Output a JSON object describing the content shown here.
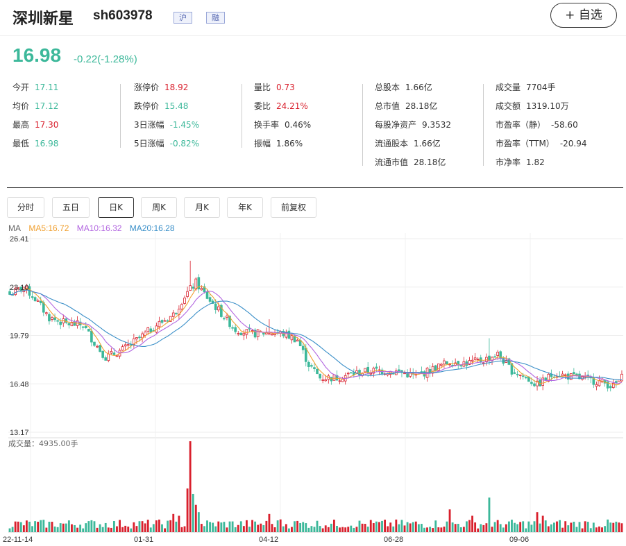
{
  "header": {
    "name": "深圳新星",
    "code": "sh603978",
    "tag_market": "沪",
    "tag_margin": "融",
    "add_watch": "+ 自选"
  },
  "quote": {
    "price": "16.98",
    "change": "-0.22(-1.28%)"
  },
  "stats": {
    "col1": [
      {
        "label": "今开",
        "value": "17.11",
        "dir": "down"
      },
      {
        "label": "均价",
        "value": "17.12",
        "dir": "down"
      },
      {
        "label": "最高",
        "value": "17.30",
        "dir": "up"
      },
      {
        "label": "最低",
        "value": "16.98",
        "dir": "down"
      }
    ],
    "col2": [
      {
        "label": "涨停价",
        "value": "18.92",
        "dir": "up"
      },
      {
        "label": "跌停价",
        "value": "15.48",
        "dir": "down"
      },
      {
        "label": "3日涨幅",
        "value": "-1.45%",
        "dir": "down"
      },
      {
        "label": "5日涨幅",
        "value": "-0.82%",
        "dir": "down"
      }
    ],
    "col3": [
      {
        "label": "量比",
        "value": "0.73",
        "dir": "up"
      },
      {
        "label": "委比",
        "value": "24.21%",
        "dir": "up"
      },
      {
        "label": "换手率",
        "value": "0.46%",
        "dir": "neutral"
      },
      {
        "label": "振幅",
        "value": "1.86%",
        "dir": "neutral"
      }
    ],
    "col4": [
      {
        "label": "总股本",
        "value": "1.66亿",
        "dir": "neutral"
      },
      {
        "label": "总市值",
        "value": "28.18亿",
        "dir": "neutral"
      },
      {
        "label": "每股净资产",
        "value": "9.3532",
        "dir": "neutral"
      },
      {
        "label": "流通股本",
        "value": "1.66亿",
        "dir": "neutral"
      },
      {
        "label": "流通市值",
        "value": "28.18亿",
        "dir": "neutral"
      }
    ],
    "col5": [
      {
        "label": "成交量",
        "value": "7704手",
        "dir": "neutral"
      },
      {
        "label": "成交额",
        "value": "1319.10万",
        "dir": "neutral"
      },
      {
        "label": "市盈率（静）",
        "value": "-58.60",
        "dir": "neutral"
      },
      {
        "label": "市盈率（TTM）",
        "value": "-20.94",
        "dir": "neutral"
      },
      {
        "label": "市净率",
        "value": "1.82",
        "dir": "neutral"
      }
    ]
  },
  "tabs": [
    "分时",
    "五日",
    "日K",
    "周K",
    "月K",
    "年K",
    "前复权"
  ],
  "active_tab": "日K",
  "ma_legend": {
    "ma": "MA",
    "ma5": "MA5:16.72",
    "ma10": "MA10:16.32",
    "ma20": "MA20:16.28"
  },
  "colors": {
    "up": "#d9202d",
    "down": "#3cb89a",
    "ma5": "#f0a030",
    "ma10": "#b266e0",
    "ma20": "#3a8fc8"
  },
  "chart_data": {
    "type": "candlestick",
    "y_ticks": [
      "26.41",
      "23.10",
      "19.79",
      "16.48",
      "13.17"
    ],
    "ylim": [
      13.17,
      26.41
    ],
    "x_ticks": [
      "22-11-14",
      "01-31",
      "04-12",
      "06-28",
      "09-06"
    ],
    "volume_label": "成交量：4935.00手",
    "close_anchors": [
      [
        0,
        22.6
      ],
      [
        5,
        23.1
      ],
      [
        9,
        22.3
      ],
      [
        14,
        21.0
      ],
      [
        20,
        20.6
      ],
      [
        26,
        20.5
      ],
      [
        30,
        19.3
      ],
      [
        34,
        18.3
      ],
      [
        40,
        18.8
      ],
      [
        46,
        19.6
      ],
      [
        52,
        20.5
      ],
      [
        58,
        21.2
      ],
      [
        62,
        22.5
      ],
      [
        66,
        23.4
      ],
      [
        70,
        22.4
      ],
      [
        75,
        21.3
      ],
      [
        80,
        20.2
      ],
      [
        86,
        19.9
      ],
      [
        92,
        20.0
      ],
      [
        97,
        19.9
      ],
      [
        102,
        19.5
      ],
      [
        106,
        17.8
      ],
      [
        110,
        16.9
      ],
      [
        116,
        16.9
      ],
      [
        122,
        17.2
      ],
      [
        130,
        17.4
      ],
      [
        138,
        17.3
      ],
      [
        144,
        17.0
      ],
      [
        150,
        17.5
      ],
      [
        156,
        18.0
      ],
      [
        162,
        17.9
      ],
      [
        168,
        18.1
      ],
      [
        173,
        18.5
      ],
      [
        178,
        17.4
      ],
      [
        183,
        16.9
      ],
      [
        187,
        16.4
      ],
      [
        193,
        17.2
      ],
      [
        198,
        17.0
      ],
      [
        204,
        16.8
      ],
      [
        210,
        16.6
      ],
      [
        214,
        16.3
      ],
      [
        217,
        16.9
      ]
    ],
    "candle_count": 218,
    "volume_spikes": [
      [
        64,
        1.0
      ],
      [
        63,
        0.48
      ],
      [
        65,
        0.42
      ],
      [
        66,
        0.3
      ],
      [
        67,
        0.22
      ],
      [
        60,
        0.18
      ],
      [
        58,
        0.2
      ],
      [
        92,
        0.2
      ],
      [
        96,
        0.14
      ],
      [
        101,
        0.12
      ],
      [
        156,
        0.25
      ],
      [
        164,
        0.18
      ],
      [
        170,
        0.38
      ],
      [
        187,
        0.22
      ],
      [
        189,
        0.18
      ]
    ]
  }
}
